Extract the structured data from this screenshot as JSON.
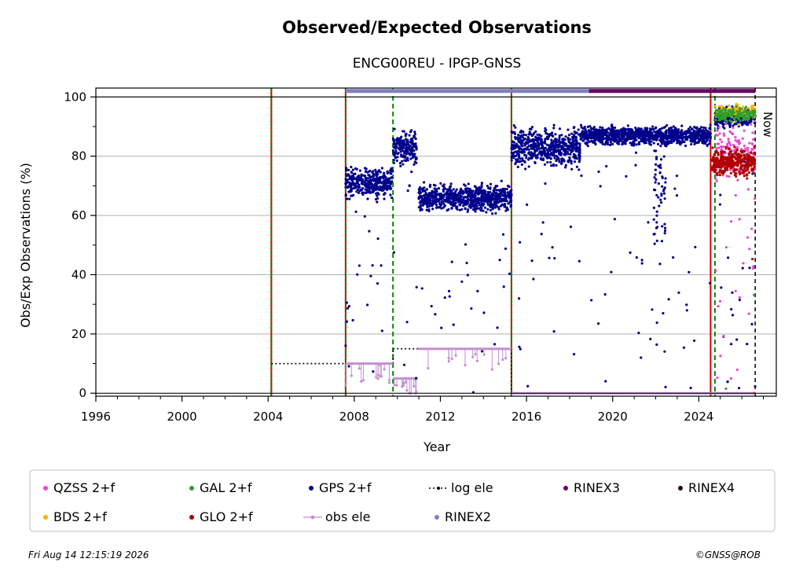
{
  "chart_data": {
    "type": "scatter",
    "title": "Observed/Expected Observations",
    "subtitle": "ENCG00REU - IPGP-GNSS",
    "xlabel": "Year",
    "ylabel": "Obs/Exp Observations (%)",
    "xlim": [
      1996,
      2027.6
    ],
    "ylim": [
      -1,
      103
    ],
    "xticks": [
      "1996",
      "2000",
      "2004",
      "2008",
      "2012",
      "2016",
      "2020",
      "2024"
    ],
    "xtick_values": [
      1996,
      2000,
      2004,
      2008,
      2012,
      2016,
      2020,
      2024
    ],
    "yticks": [
      "0",
      "20",
      "40",
      "60",
      "80",
      "100"
    ],
    "ytick_values": [
      0,
      20,
      40,
      60,
      80,
      100
    ],
    "grid": "horizontal",
    "now_label": "Now",
    "now_x": 2026.62,
    "colors": {
      "qzss": "#ee44cc",
      "bds": "#ffb000",
      "gal": "#2ca02c",
      "gps": "#00008b",
      "glo": "#b00000",
      "obs_ele": "#c490d1",
      "rinex2": "#8080c0",
      "rinex3": "#660066",
      "rinex4": "#220011",
      "log_ele": "#000000",
      "event_red": "#dd0000",
      "event_green": "#008800"
    },
    "event_lines": [
      {
        "x": 2004.15,
        "style": "red-green"
      },
      {
        "x": 2007.6,
        "style": "red-green"
      },
      {
        "x": 2009.8,
        "style": "green-dashed"
      },
      {
        "x": 2015.3,
        "style": "red-green"
      },
      {
        "x": 2024.55,
        "style": "red"
      },
      {
        "x": 2024.75,
        "style": "green-dashed"
      }
    ],
    "log_ele": [
      {
        "x": [
          2004.15,
          2007.6
        ],
        "y": 10
      },
      {
        "x": [
          2007.6,
          2009.8
        ],
        "y": 10
      },
      {
        "x": [
          2009.8,
          2015.3
        ],
        "y": 15
      },
      {
        "x": [
          2015.3,
          2026.62
        ],
        "y": 0
      }
    ],
    "rinex_bars": [
      {
        "name": "RINEX2",
        "x": [
          2007.6,
          2018.9
        ],
        "y": 102
      },
      {
        "name": "RINEX3",
        "x": [
          2018.9,
          2026.62
        ],
        "y": 102
      }
    ],
    "gps_segments": [
      {
        "x": [
          2007.6,
          2009.8
        ],
        "center": 71,
        "spread": 3
      },
      {
        "x": [
          2009.8,
          2010.9
        ],
        "center": 83,
        "spread": 4
      },
      {
        "x": [
          2011.0,
          2015.3
        ],
        "center": 66,
        "spread": 3
      },
      {
        "x": [
          2015.3,
          2018.5
        ],
        "center": 83,
        "spread": 4
      },
      {
        "x": [
          2018.5,
          2024.55
        ],
        "center": 87,
        "spread": 2
      },
      {
        "x": [
          2024.75,
          2026.62
        ],
        "center": 93,
        "spread": 2
      }
    ],
    "glo_segment": {
      "x": [
        2024.6,
        2026.62
      ],
      "center": 78,
      "spread": 3
    },
    "gal_segment": {
      "x": [
        2024.75,
        2026.62
      ],
      "center": 94,
      "spread": 1.5
    },
    "bds_segment": {
      "x": [
        2024.75,
        2026.62
      ],
      "center": 95,
      "spread": 1.5
    },
    "qzss_segment": {
      "x": [
        2024.75,
        2026.62
      ],
      "center": 82,
      "spread": 6
    },
    "obs_ele_segments": [
      {
        "x": [
          2007.6,
          2009.8
        ],
        "y": 10
      },
      {
        "x": [
          2009.8,
          2010.95
        ],
        "y": 5
      },
      {
        "x": [
          2010.95,
          2015.3
        ],
        "y": 15
      },
      {
        "x": [
          2015.3,
          2026.62
        ],
        "y": 0
      }
    ],
    "legend": [
      {
        "key": "qzss",
        "label": "QZSS 2+f",
        "kind": "dot"
      },
      {
        "key": "gal",
        "label": "GAL 2+f",
        "kind": "dot"
      },
      {
        "key": "gps",
        "label": "GPS 2+f",
        "kind": "dot"
      },
      {
        "key": "log_ele",
        "label": "log ele",
        "kind": "dotted"
      },
      {
        "key": "rinex3",
        "label": "RINEX3",
        "kind": "dot"
      },
      {
        "key": "rinex4",
        "label": "RINEX4",
        "kind": "dot"
      },
      {
        "key": "bds",
        "label": "BDS 2+f",
        "kind": "dot"
      },
      {
        "key": "glo",
        "label": "GLO 2+f",
        "kind": "dot"
      },
      {
        "key": "obs_ele",
        "label": "obs ele",
        "kind": "line"
      },
      {
        "key": "rinex2",
        "label": "RINEX2",
        "kind": "dot"
      }
    ]
  },
  "footer": {
    "timestamp": "Fri Aug 14 12:15:19 2026",
    "credit": "©GNSS@ROB"
  }
}
